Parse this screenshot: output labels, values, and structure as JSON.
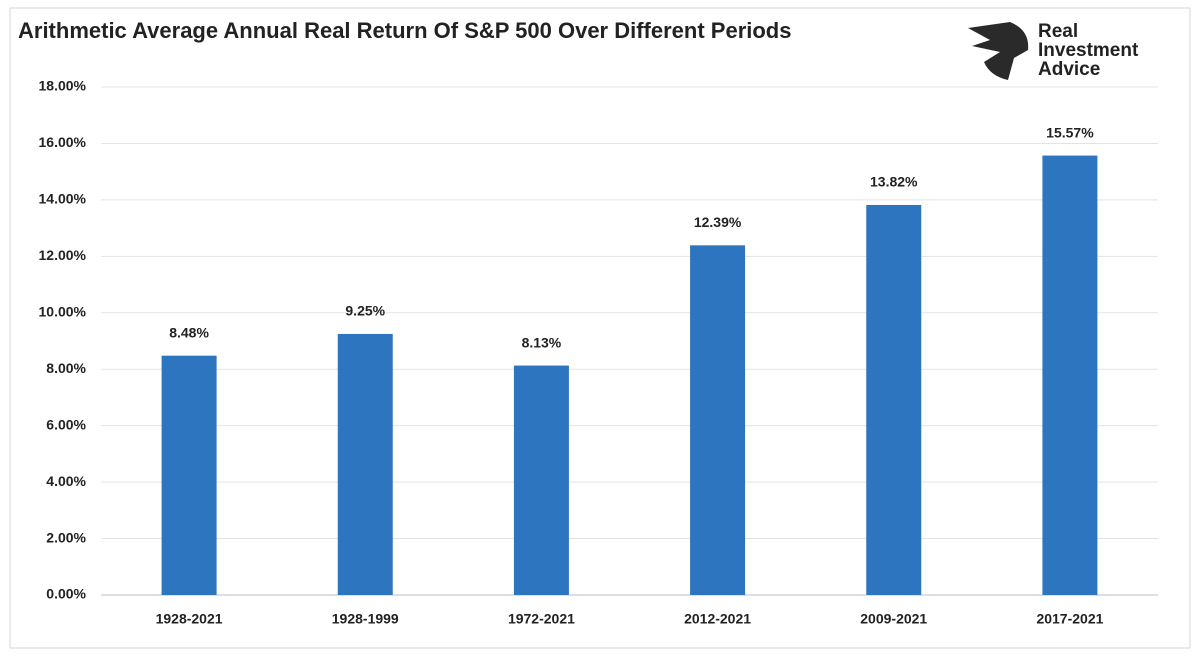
{
  "chart_data": {
    "type": "bar",
    "title": "Arithmetic Average Annual Real Return Of S&P 500 Over Different Periods",
    "categories": [
      "1928-2021",
      "1928-1999",
      "1972-2021",
      "2012-2021",
      "2009-2021",
      "2017-2021"
    ],
    "values": [
      8.48,
      9.25,
      8.13,
      12.39,
      13.82,
      15.57
    ],
    "value_labels": [
      "8.48%",
      "9.25%",
      "8.13%",
      "12.39%",
      "13.82%",
      "15.57%"
    ],
    "color": "#2e75c0",
    "ylim": [
      0,
      18
    ],
    "yticks": [
      {
        "value": 0,
        "label": "0.00%"
      },
      {
        "value": 2,
        "label": "2.00%"
      },
      {
        "value": 4,
        "label": "4.00%"
      },
      {
        "value": 6,
        "label": "6.00%"
      },
      {
        "value": 8,
        "label": "8.00%"
      },
      {
        "value": 10,
        "label": "10.00%"
      },
      {
        "value": 12,
        "label": "12.00%"
      },
      {
        "value": 14,
        "label": "14.00%"
      },
      {
        "value": 16,
        "label": "16.00%"
      },
      {
        "value": 18,
        "label": "18.00%"
      }
    ],
    "grid": true
  },
  "logo": [
    "Real",
    "Investment",
    "Advice"
  ]
}
